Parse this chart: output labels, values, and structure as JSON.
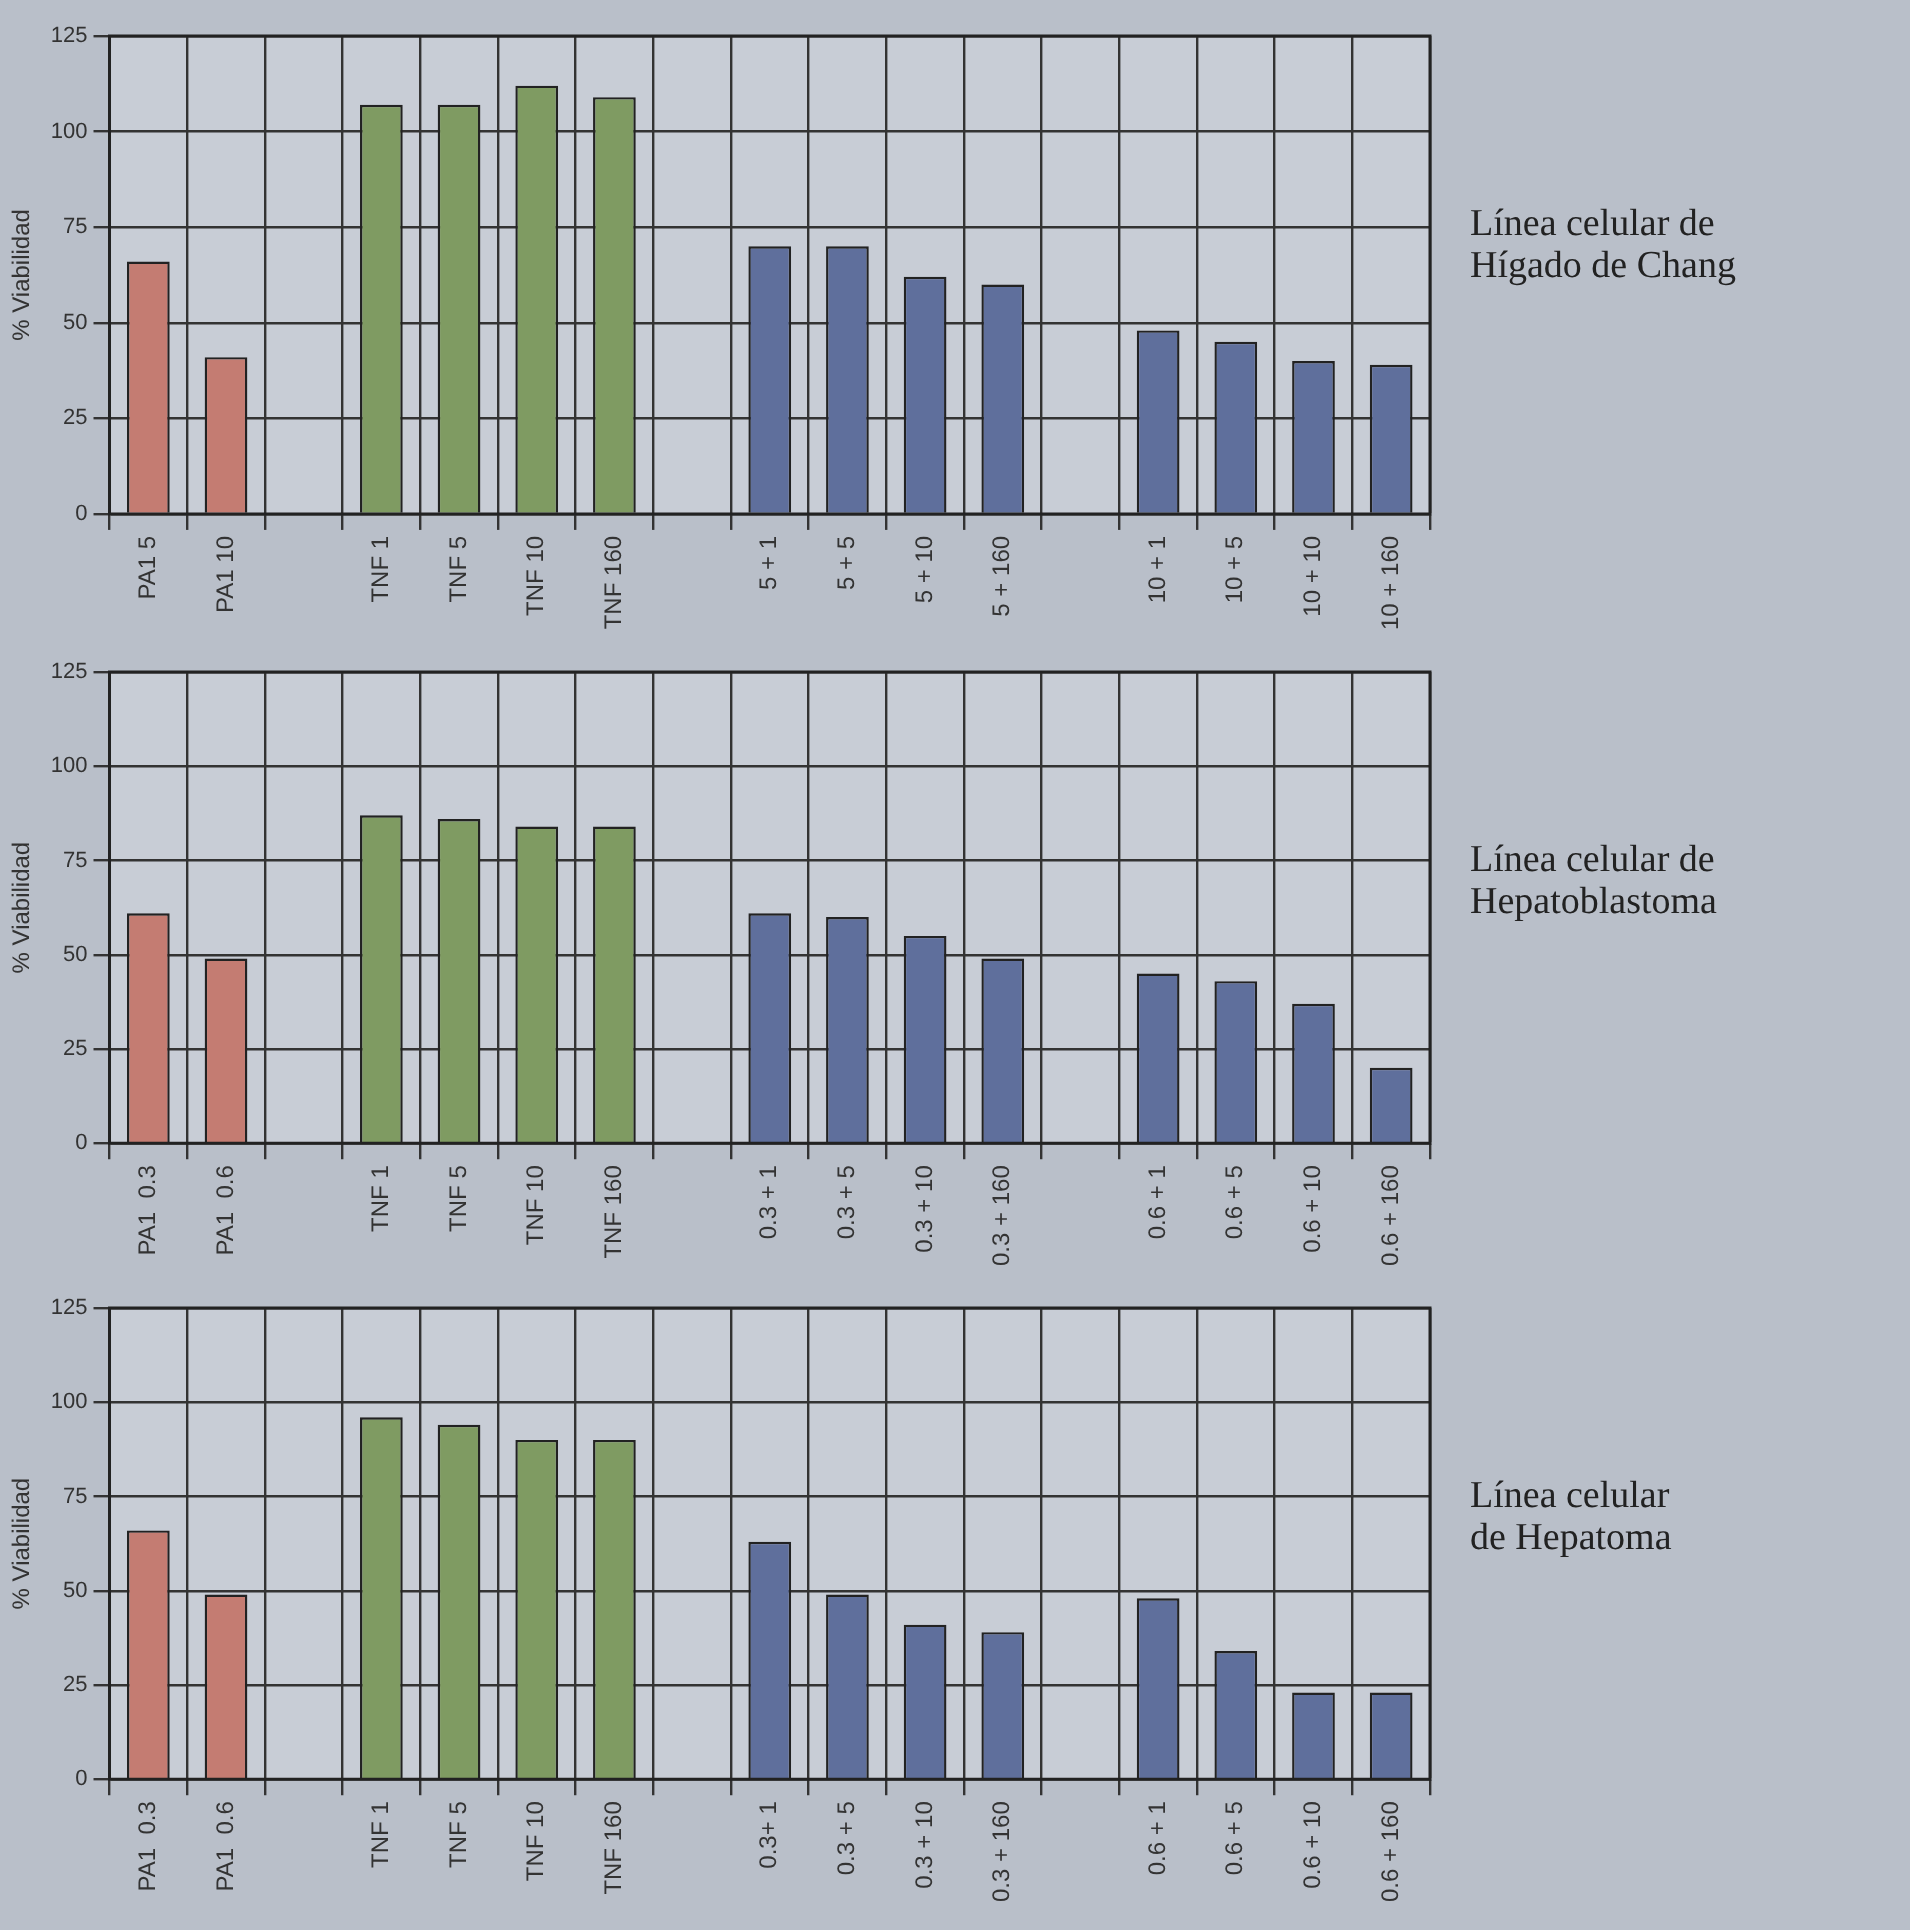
{
  "chart_data": [
    {
      "type": "bar",
      "annotations": [
        "Línea celular de\nHígado de Chang"
      ],
      "ylabel": "% Viabilidad",
      "categories": [
        "PA1 5",
        "PA1 10",
        null,
        "TNF 1",
        "TNF 5",
        "TNF 10",
        "TNF 160",
        null,
        "5 + 1",
        "5 + 5",
        "5 + 10",
        "5 + 160",
        null,
        "10 + 1",
        "10 + 5",
        "10 + 10",
        "10 + 160"
      ],
      "values": [
        66,
        41,
        null,
        107,
        107,
        112,
        109,
        null,
        70,
        70,
        62,
        60,
        null,
        48,
        45,
        40,
        39
      ],
      "colors": [
        "#c47c72",
        "#c47c72",
        "#5f6f9c",
        "#7f9b62",
        "#7f9b62",
        "#7f9b62",
        "#7f9b62",
        "#5f6f9c",
        "#5f6f9c",
        "#5f6f9c",
        "#5f6f9c",
        "#5f6f9c",
        "#5f6f9c",
        "#5f6f9c",
        "#5f6f9c",
        "#5f6f9c",
        "#5f6f9c"
      ],
      "ylim": [
        0,
        125
      ],
      "yticks": [
        0,
        25,
        50,
        75,
        100,
        125
      ],
      "grid": true,
      "legend": false
    },
    {
      "type": "bar",
      "annotations": [
        "Línea celular de\nHepatoblastoma"
      ],
      "ylabel": "% Viabilidad",
      "categories": [
        "PA1  0.3",
        "PA1  0.6",
        null,
        "TNF 1",
        "TNF 5",
        "TNF 10",
        "TNF 160",
        null,
        "0.3 + 1",
        "0.3 + 5",
        "0.3 + 10",
        "0.3 + 160",
        null,
        "0.6 + 1",
        "0.6 + 5",
        "0.6 + 10",
        "0.6 + 160"
      ],
      "values": [
        61,
        49,
        null,
        87,
        86,
        84,
        84,
        null,
        61,
        60,
        55,
        49,
        null,
        45,
        43,
        37,
        20
      ],
      "colors": [
        "#c47c72",
        "#c47c72",
        "#5f6f9c",
        "#7f9b62",
        "#7f9b62",
        "#7f9b62",
        "#7f9b62",
        "#5f6f9c",
        "#5f6f9c",
        "#5f6f9c",
        "#5f6f9c",
        "#5f6f9c",
        "#5f6f9c",
        "#5f6f9c",
        "#5f6f9c",
        "#5f6f9c",
        "#5f6f9c"
      ],
      "ylim": [
        0,
        125
      ],
      "yticks": [
        0,
        25,
        50,
        75,
        100,
        125
      ],
      "grid": true,
      "legend": false
    },
    {
      "type": "bar",
      "annotations": [
        "Línea celular\nde Hepatoma"
      ],
      "ylabel": "% Viabilidad",
      "categories": [
        "PA1  0.3",
        "PA1  0.6",
        null,
        "TNF 1",
        "TNF 5",
        "TNF 10",
        "TNF 160",
        null,
        "0.3+ 1",
        "0.3 + 5",
        "0.3 + 10",
        "0.3 + 160",
        null,
        "0.6 + 1",
        "0.6 + 5",
        "0.6 + 10",
        "0.6 + 160"
      ],
      "values": [
        66,
        49,
        null,
        96,
        94,
        90,
        90,
        null,
        63,
        49,
        41,
        39,
        null,
        48,
        34,
        23,
        23
      ],
      "colors": [
        "#c47c72",
        "#c47c72",
        "#5f6f9c",
        "#7f9b62",
        "#7f9b62",
        "#7f9b62",
        "#7f9b62",
        "#5f6f9c",
        "#5f6f9c",
        "#5f6f9c",
        "#5f6f9c",
        "#5f6f9c",
        "#5f6f9c",
        "#5f6f9c",
        "#5f6f9c",
        "#5f6f9c",
        "#5f6f9c"
      ],
      "ylim": [
        0,
        125
      ],
      "yticks": [
        0,
        25,
        50,
        75,
        100,
        125
      ],
      "grid": true,
      "legend": false
    }
  ]
}
